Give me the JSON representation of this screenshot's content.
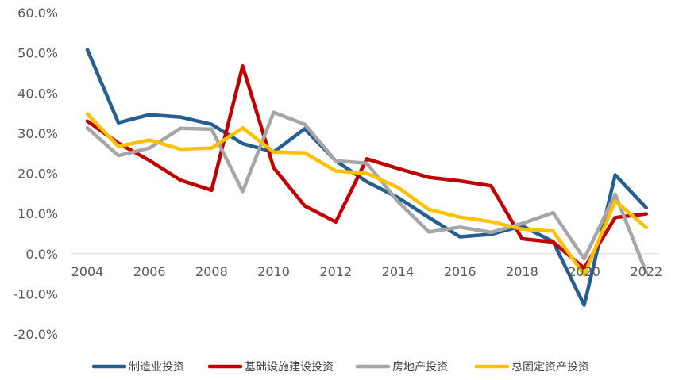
{
  "chart_data": {
    "type": "line",
    "x": [
      2004,
      2005,
      2006,
      2007,
      2008,
      2009,
      2010,
      2011,
      2012,
      2013,
      2014,
      2015,
      2016,
      2017,
      2018,
      2019,
      2020,
      2021,
      2022
    ],
    "x_tick_labels": [
      "2004",
      "2006",
      "2008",
      "2010",
      "2012",
      "2014",
      "2016",
      "2018",
      "2020",
      "2022"
    ],
    "y_tick_labels": [
      "60.0%",
      "50.0%",
      "40.0%",
      "30.0%",
      "20.0%",
      "10.0%",
      "0.0%",
      "-10.0%",
      "-20.0%"
    ],
    "ylim": [
      -20,
      60
    ],
    "y_unit": "%",
    "grid": false,
    "legend_position": "bottom",
    "series": [
      {
        "name": "制造业投资",
        "color": "#255E91",
        "values": [
          50.8,
          32.6,
          34.6,
          34.0,
          32.2,
          27.4,
          25.3,
          31.1,
          23.1,
          17.9,
          14.0,
          9.0,
          4.2,
          4.8,
          6.9,
          3.0,
          -12.8,
          19.6,
          11.4
        ]
      },
      {
        "name": "基础设施建设投资",
        "color": "#C00000",
        "values": [
          33.0,
          27.5,
          23.2,
          18.3,
          15.8,
          46.7,
          21.4,
          11.9,
          7.9,
          23.6,
          21.2,
          19.0,
          18.1,
          16.9,
          3.7,
          2.9,
          -3.6,
          9.0,
          9.9
        ]
      },
      {
        "name": "房地产投资",
        "color": "#A6A6A6",
        "values": [
          31.3,
          24.4,
          26.3,
          31.2,
          31.0,
          15.5,
          35.2,
          32.2,
          23.1,
          22.5,
          13.0,
          5.4,
          6.6,
          5.3,
          7.5,
          10.2,
          -1.3,
          14.8,
          -4.7
        ]
      },
      {
        "name": "总固定资产投资",
        "color": "#FFC000",
        "values": [
          34.8,
          26.7,
          28.3,
          26.0,
          26.3,
          31.3,
          25.3,
          25.1,
          20.6,
          20.0,
          16.5,
          11.0,
          9.1,
          8.0,
          6.1,
          5.6,
          -5.3,
          13.1,
          6.5
        ]
      }
    ]
  }
}
